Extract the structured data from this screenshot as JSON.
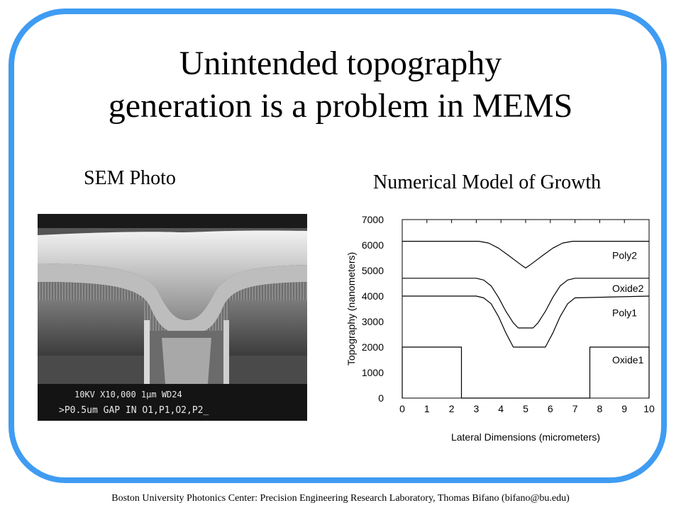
{
  "slide": {
    "title_line1": "Unintended topography",
    "title_line2": "generation is a problem in MEMS",
    "sem_label": "SEM Photo",
    "model_label": "Numerical Model of Growth",
    "footer": "Boston University Photonics Center: Precision Engineering Research Laboratory, Thomas Bifano (bifano@bu.edu)",
    "accent_color": "#3f9cf2"
  },
  "sem_photo": {
    "caption_line1": "10KV  X10,000  1μm  WD24",
    "caption_line2": ">P0.5um GAP IN O1,P1,O2,P2_"
  },
  "chart_data": {
    "type": "line",
    "xlabel": "Lateral Dimensions (micrometers)",
    "ylabel": "Topography (nanometers)",
    "xlim": [
      0,
      10
    ],
    "ylim": [
      0,
      7000
    ],
    "xticks": [
      0,
      1,
      2,
      3,
      4,
      5,
      6,
      7,
      8,
      9,
      10
    ],
    "yticks": [
      0,
      1000,
      2000,
      3000,
      4000,
      5000,
      6000,
      7000
    ],
    "grid": false,
    "legend": "labels placed next to each curve",
    "series": [
      {
        "name": "Oxide1",
        "x": [
          0,
          0,
          2.4,
          2.4,
          7.6,
          7.6,
          10,
          10
        ],
        "y": [
          0,
          2000,
          2000,
          0,
          0,
          2000,
          2000,
          0
        ]
      },
      {
        "name": "Poly1",
        "x": [
          0,
          3.0,
          3.3,
          3.6,
          3.9,
          4.2,
          4.5,
          4.7,
          5.0,
          5.3,
          5.5,
          5.8,
          6.1,
          6.4,
          6.7,
          7.0,
          10
        ],
        "y": [
          4000,
          4000,
          3930,
          3700,
          3200,
          2550,
          2000,
          2000,
          2000,
          2000,
          2000,
          2000,
          2550,
          3200,
          3700,
          3930,
          4000
        ]
      },
      {
        "name": "Oxide2",
        "x": [
          0,
          3.0,
          3.3,
          3.6,
          3.9,
          4.2,
          4.5,
          4.7,
          5.0,
          5.3,
          5.5,
          5.8,
          6.1,
          6.4,
          6.7,
          7.0,
          10
        ],
        "y": [
          4700,
          4700,
          4630,
          4400,
          3950,
          3400,
          2950,
          2750,
          2750,
          2750,
          2950,
          3400,
          3950,
          4400,
          4630,
          4700,
          4700
        ]
      },
      {
        "name": "Poly2",
        "x": [
          0,
          3.1,
          3.5,
          3.9,
          4.3,
          4.6,
          4.85,
          5.0,
          5.15,
          5.4,
          5.7,
          6.1,
          6.5,
          6.9,
          10
        ],
        "y": [
          6150,
          6150,
          6080,
          5880,
          5600,
          5380,
          5200,
          5100,
          5200,
          5380,
          5600,
          5880,
          6080,
          6150,
          6150
        ]
      }
    ]
  }
}
